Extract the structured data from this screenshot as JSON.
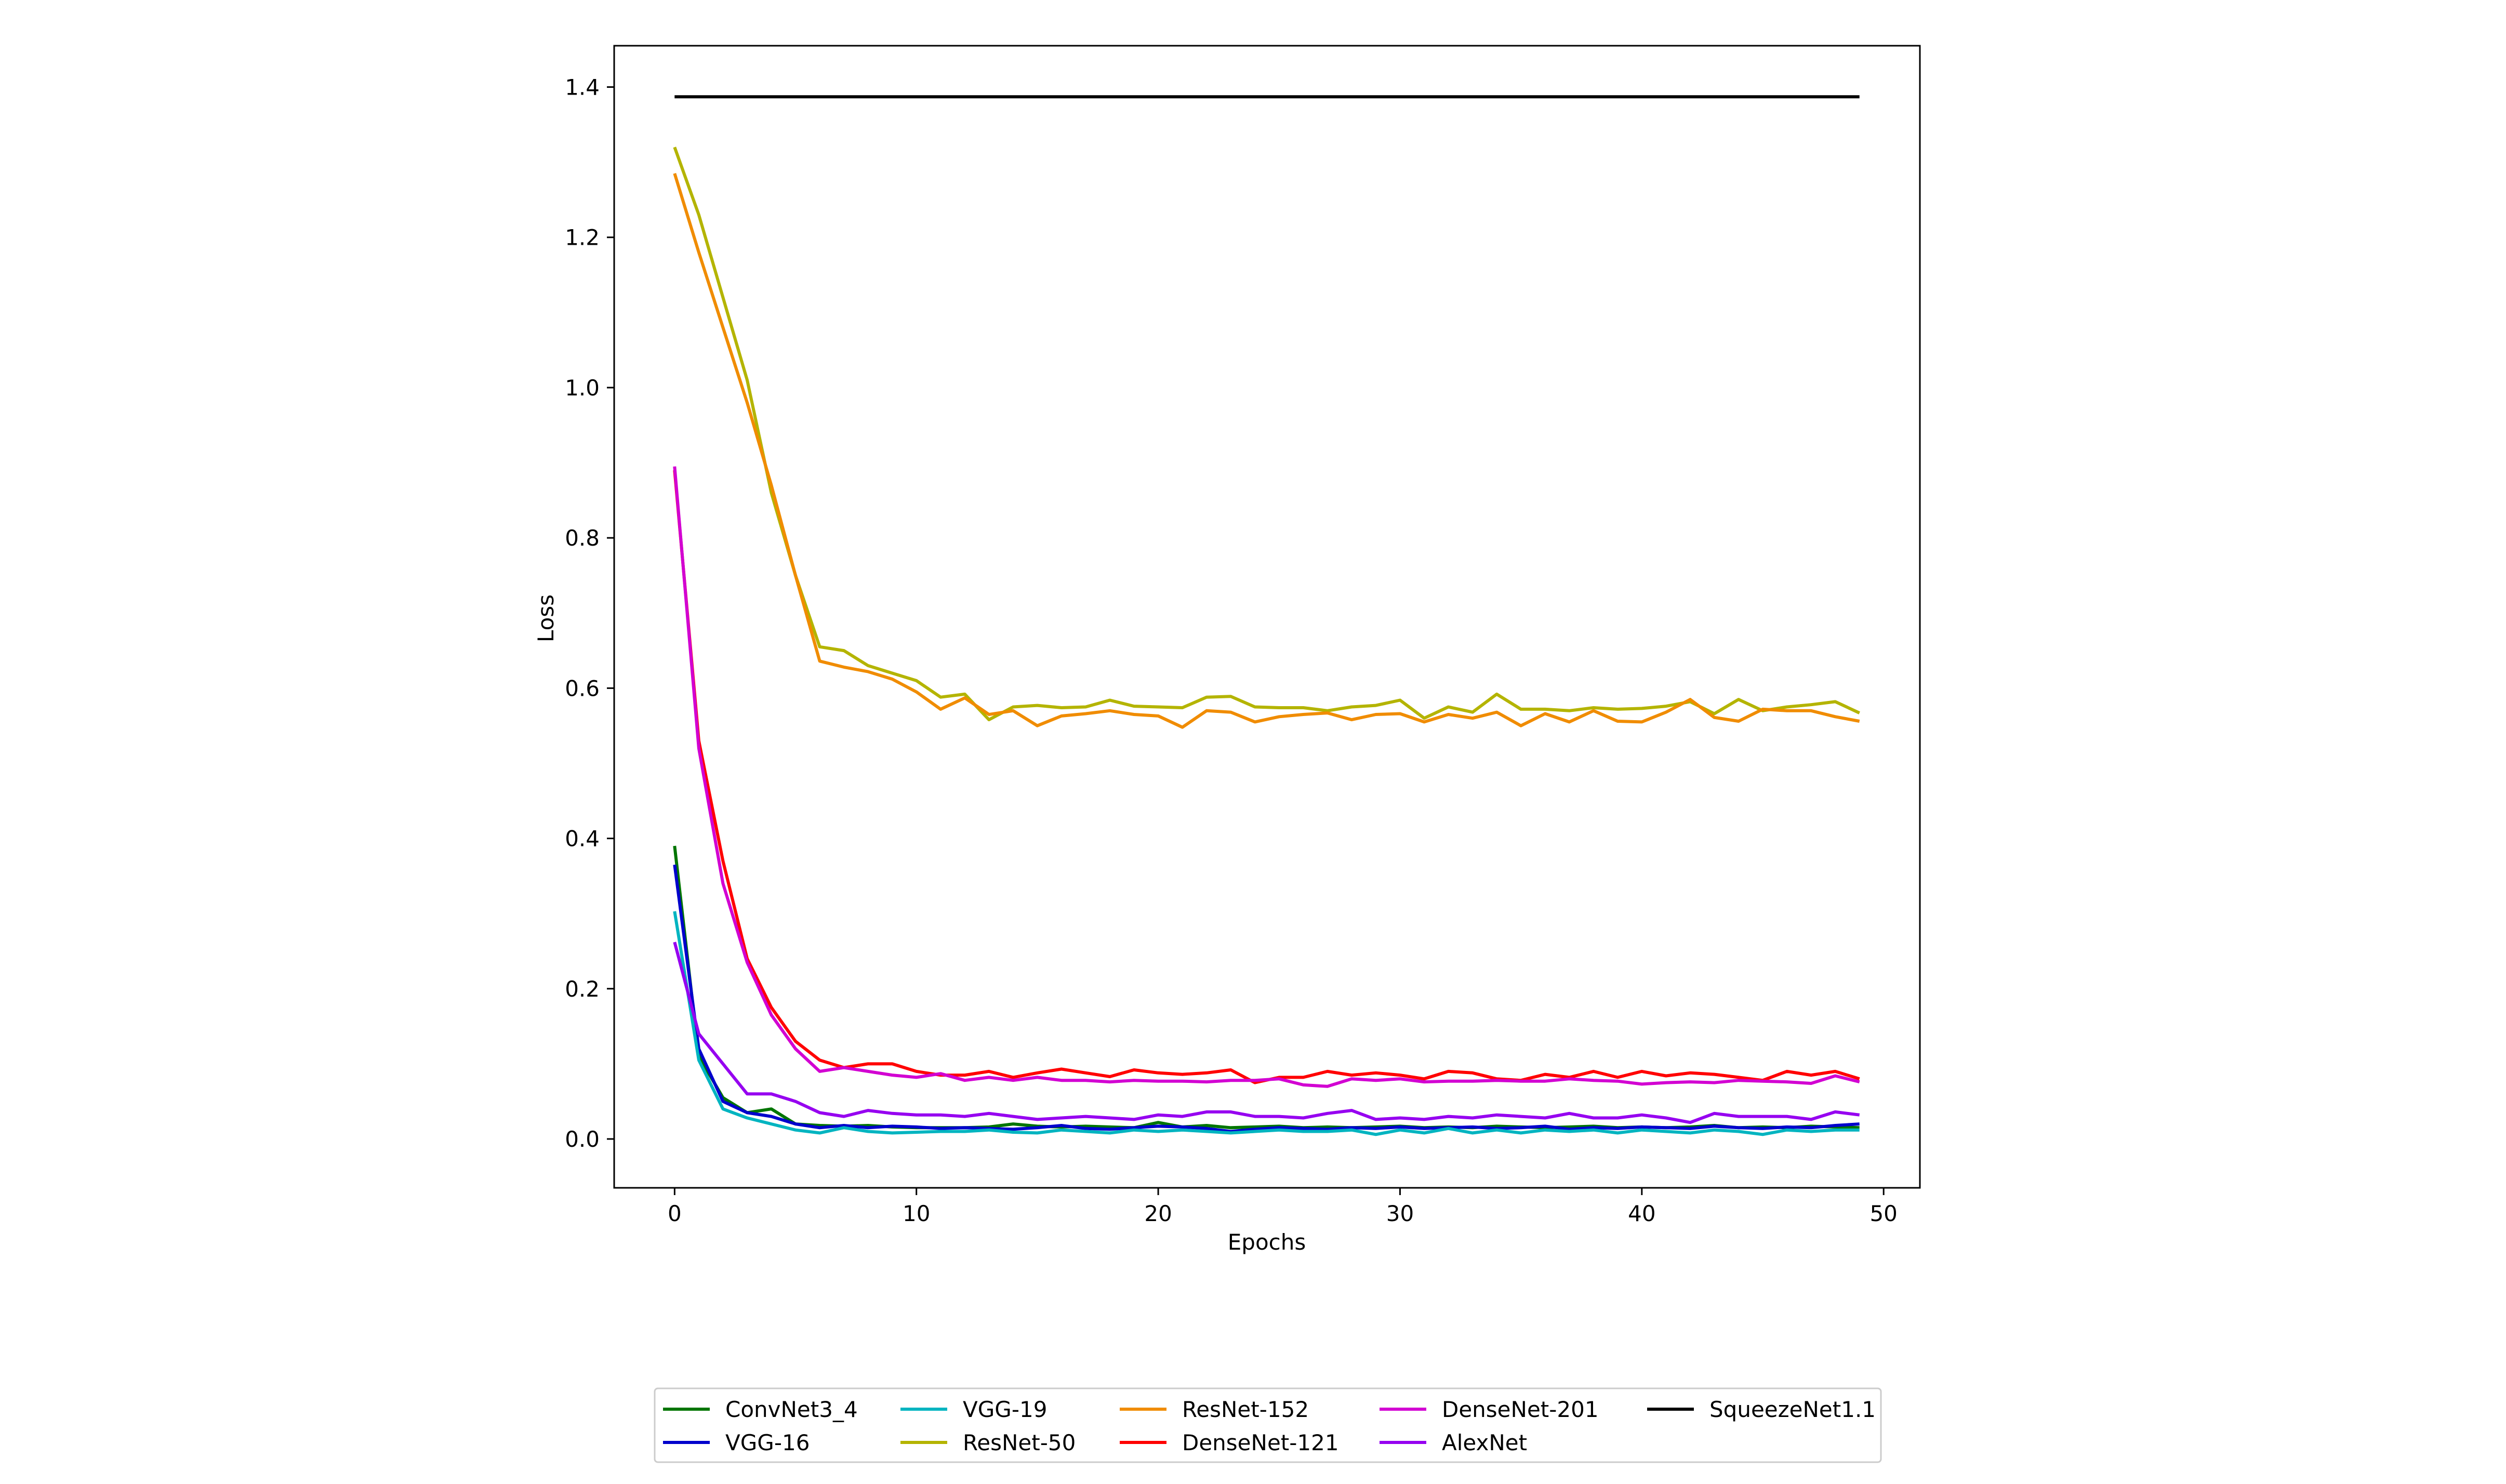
{
  "chart_data": {
    "type": "line",
    "title": "",
    "xlabel": "Epochs",
    "ylabel": "Loss",
    "xlim": [
      -2.5,
      51.5
    ],
    "ylim": [
      -0.065,
      1.455
    ],
    "xticks": [
      0,
      10,
      20,
      30,
      40,
      50
    ],
    "xtick_labels": [
      "0",
      "10",
      "20",
      "30",
      "40",
      "50"
    ],
    "yticks": [
      0.0,
      0.2,
      0.4,
      0.6,
      0.8,
      1.0,
      1.2,
      1.4
    ],
    "ytick_labels": [
      "0.0",
      "0.2",
      "0.4",
      "0.6",
      "0.8",
      "1.0",
      "1.2",
      "1.4"
    ],
    "grid": false,
    "legend_placement": "bottom-center",
    "x": [
      0,
      1,
      2,
      3,
      4,
      5,
      6,
      7,
      8,
      9,
      10,
      11,
      12,
      13,
      14,
      15,
      16,
      17,
      18,
      19,
      20,
      21,
      22,
      23,
      24,
      25,
      26,
      27,
      28,
      29,
      30,
      31,
      32,
      33,
      34,
      35,
      36,
      37,
      38,
      39,
      40,
      41,
      42,
      43,
      44,
      45,
      46,
      47,
      48,
      49
    ],
    "series": [
      {
        "name": "ConvNet3_4",
        "color": "#007500",
        "values": [
          0.39,
          0.11,
          0.055,
          0.035,
          0.04,
          0.02,
          0.018,
          0.017,
          0.018,
          0.016,
          0.015,
          0.015,
          0.015,
          0.016,
          0.02,
          0.017,
          0.016,
          0.017,
          0.016,
          0.015,
          0.022,
          0.016,
          0.018,
          0.015,
          0.016,
          0.017,
          0.015,
          0.016,
          0.015,
          0.016,
          0.017,
          0.015,
          0.016,
          0.015,
          0.017,
          0.016,
          0.015,
          0.016,
          0.017,
          0.015,
          0.016,
          0.015,
          0.016,
          0.018,
          0.015,
          0.016,
          0.015,
          0.017,
          0.016,
          0.015
        ]
      },
      {
        "name": "VGG-16",
        "color": "#0000cc",
        "values": [
          0.365,
          0.12,
          0.05,
          0.035,
          0.03,
          0.02,
          0.015,
          0.018,
          0.015,
          0.017,
          0.016,
          0.014,
          0.015,
          0.014,
          0.013,
          0.015,
          0.018,
          0.014,
          0.013,
          0.015,
          0.017,
          0.016,
          0.014,
          0.01,
          0.013,
          0.015,
          0.014,
          0.013,
          0.015,
          0.014,
          0.016,
          0.014,
          0.015,
          0.016,
          0.014,
          0.015,
          0.017,
          0.013,
          0.015,
          0.014,
          0.016,
          0.015,
          0.014,
          0.017,
          0.015,
          0.014,
          0.016,
          0.015,
          0.018,
          0.02
        ]
      },
      {
        "name": "VGG-19",
        "color": "#00b4c0",
        "values": [
          0.303,
          0.105,
          0.04,
          0.028,
          0.02,
          0.012,
          0.008,
          0.015,
          0.01,
          0.008,
          0.009,
          0.01,
          0.01,
          0.012,
          0.009,
          0.008,
          0.012,
          0.01,
          0.008,
          0.012,
          0.01,
          0.012,
          0.01,
          0.008,
          0.01,
          0.012,
          0.01,
          0.01,
          0.012,
          0.006,
          0.012,
          0.008,
          0.014,
          0.008,
          0.012,
          0.008,
          0.012,
          0.01,
          0.012,
          0.008,
          0.012,
          0.01,
          0.008,
          0.012,
          0.01,
          0.006,
          0.012,
          0.01,
          0.012,
          0.012
        ]
      },
      {
        "name": "ResNet-50",
        "color": "#b4b400",
        "values": [
          1.32,
          1.23,
          1.12,
          1.01,
          0.86,
          0.75,
          0.655,
          0.65,
          0.63,
          0.62,
          0.61,
          0.588,
          0.592,
          0.558,
          0.575,
          0.577,
          0.574,
          0.575,
          0.584,
          0.576,
          0.575,
          0.574,
          0.588,
          0.589,
          0.575,
          0.574,
          0.574,
          0.57,
          0.575,
          0.577,
          0.584,
          0.56,
          0.575,
          0.568,
          0.592,
          0.572,
          0.572,
          0.57,
          0.574,
          0.572,
          0.573,
          0.576,
          0.582,
          0.566,
          0.585,
          0.57,
          0.575,
          0.578,
          0.582,
          0.567
        ]
      },
      {
        "name": "ResNet-152",
        "color": "#f08c00",
        "values": [
          1.285,
          1.18,
          1.08,
          0.98,
          0.87,
          0.75,
          0.636,
          0.628,
          0.622,
          0.612,
          0.595,
          0.572,
          0.587,
          0.565,
          0.57,
          0.55,
          0.563,
          0.566,
          0.57,
          0.565,
          0.563,
          0.548,
          0.57,
          0.568,
          0.555,
          0.562,
          0.565,
          0.567,
          0.558,
          0.565,
          0.566,
          0.555,
          0.565,
          0.56,
          0.568,
          0.55,
          0.566,
          0.555,
          0.57,
          0.556,
          0.555,
          0.568,
          0.585,
          0.561,
          0.556,
          0.572,
          0.57,
          0.57,
          0.562,
          0.556
        ]
      },
      {
        "name": "DenseNet-121",
        "color": "#ff0000",
        "values": [
          0.89,
          0.53,
          0.37,
          0.24,
          0.175,
          0.13,
          0.105,
          0.095,
          0.1,
          0.1,
          0.09,
          0.085,
          0.085,
          0.09,
          0.082,
          0.088,
          0.093,
          0.088,
          0.083,
          0.092,
          0.088,
          0.086,
          0.088,
          0.092,
          0.075,
          0.082,
          0.082,
          0.09,
          0.085,
          0.088,
          0.085,
          0.08,
          0.09,
          0.088,
          0.08,
          0.078,
          0.086,
          0.082,
          0.09,
          0.082,
          0.09,
          0.084,
          0.088,
          0.086,
          0.082,
          0.078,
          0.09,
          0.085,
          0.09,
          0.08
        ]
      },
      {
        "name": "DenseNet-201",
        "color": "#d200d2",
        "values": [
          0.895,
          0.52,
          0.34,
          0.235,
          0.165,
          0.12,
          0.09,
          0.095,
          0.09,
          0.085,
          0.082,
          0.087,
          0.078,
          0.082,
          0.078,
          0.082,
          0.078,
          0.078,
          0.076,
          0.078,
          0.077,
          0.077,
          0.076,
          0.078,
          0.078,
          0.08,
          0.072,
          0.07,
          0.08,
          0.078,
          0.08,
          0.076,
          0.077,
          0.077,
          0.078,
          0.077,
          0.077,
          0.08,
          0.078,
          0.077,
          0.073,
          0.075,
          0.076,
          0.075,
          0.078,
          0.077,
          0.076,
          0.074,
          0.084,
          0.076
        ]
      },
      {
        "name": "AlexNet",
        "color": "#9600f0",
        "values": [
          0.262,
          0.14,
          0.1,
          0.06,
          0.06,
          0.05,
          0.035,
          0.03,
          0.038,
          0.034,
          0.032,
          0.032,
          0.03,
          0.034,
          0.03,
          0.026,
          0.028,
          0.03,
          0.028,
          0.026,
          0.032,
          0.03,
          0.036,
          0.036,
          0.03,
          0.03,
          0.028,
          0.034,
          0.038,
          0.026,
          0.028,
          0.026,
          0.03,
          0.028,
          0.032,
          0.03,
          0.028,
          0.034,
          0.028,
          0.028,
          0.032,
          0.028,
          0.022,
          0.034,
          0.03,
          0.03,
          0.03,
          0.026,
          0.036,
          0.032
        ]
      },
      {
        "name": "SqueezeNet1.1",
        "color": "#000000",
        "values": [
          1.387,
          1.387,
          1.387,
          1.387,
          1.387,
          1.387,
          1.387,
          1.387,
          1.387,
          1.387,
          1.387,
          1.387,
          1.387,
          1.387,
          1.387,
          1.387,
          1.387,
          1.387,
          1.387,
          1.387,
          1.387,
          1.387,
          1.387,
          1.387,
          1.387,
          1.387,
          1.387,
          1.387,
          1.387,
          1.387,
          1.387,
          1.387,
          1.387,
          1.387,
          1.387,
          1.387,
          1.387,
          1.387,
          1.387,
          1.387,
          1.387,
          1.387,
          1.387,
          1.387,
          1.387,
          1.387,
          1.387,
          1.387,
          1.387,
          1.387
        ]
      }
    ],
    "legend_order": [
      "ConvNet3_4",
      "VGG-16",
      "VGG-19",
      "ResNet-50",
      "ResNet-152",
      "DenseNet-121",
      "DenseNet-201",
      "AlexNet",
      "SqueezeNet1.1"
    ]
  }
}
